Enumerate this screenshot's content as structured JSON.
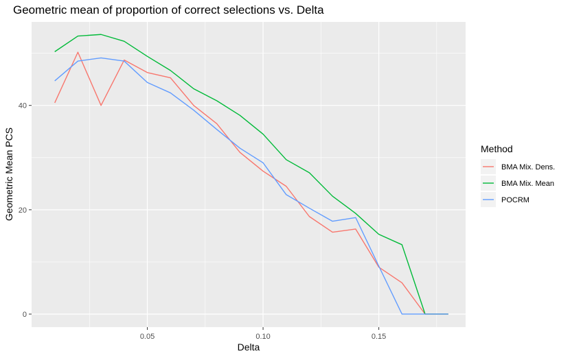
{
  "chart_data": {
    "type": "line",
    "title": "Geometric mean of proportion of correct selections vs. Delta",
    "xlabel": "Delta",
    "ylabel": "Geometric Mean PCS",
    "xlim": [
      0.0,
      0.1875
    ],
    "ylim": [
      -2.5,
      56
    ],
    "x_ticks": [
      {
        "value": 0.05,
        "label": "0.05"
      },
      {
        "value": 0.1,
        "label": "0.10"
      },
      {
        "value": 0.15,
        "label": "0.15"
      }
    ],
    "y_ticks": [
      {
        "value": 0,
        "label": "0"
      },
      {
        "value": 20,
        "label": "20"
      },
      {
        "value": 40,
        "label": "40"
      }
    ],
    "grid": true,
    "legend": {
      "title": "Method",
      "position": "right"
    },
    "x": [
      0.01,
      0.02,
      0.03,
      0.04,
      0.05,
      0.06,
      0.07,
      0.08,
      0.09,
      0.1,
      0.11,
      0.12,
      0.13,
      0.14,
      0.15,
      0.16,
      0.17,
      0.18
    ],
    "series": [
      {
        "name": "BMA Mix. Dens.",
        "color": "#F8766D",
        "values": [
          40.5,
          50.2,
          40.0,
          48.7,
          46.3,
          45.3,
          40.0,
          36.5,
          31.0,
          27.4,
          24.5,
          18.7,
          15.7,
          16.3,
          9.0,
          6.0,
          0.0,
          0.0
        ]
      },
      {
        "name": "BMA Mix. Mean",
        "color": "#00BA38",
        "values": [
          50.3,
          53.3,
          53.6,
          52.3,
          49.4,
          46.7,
          43.2,
          40.9,
          38.1,
          34.5,
          29.6,
          27.1,
          22.6,
          19.3,
          15.3,
          13.3,
          0.0,
          0.0
        ]
      },
      {
        "name": "POCRM",
        "color": "#619CFF",
        "values": [
          44.7,
          48.5,
          49.1,
          48.5,
          44.4,
          42.4,
          39.1,
          35.4,
          31.8,
          29.0,
          22.9,
          20.3,
          17.8,
          18.5,
          9.2,
          0.0,
          0.0,
          0.0
        ]
      }
    ]
  }
}
